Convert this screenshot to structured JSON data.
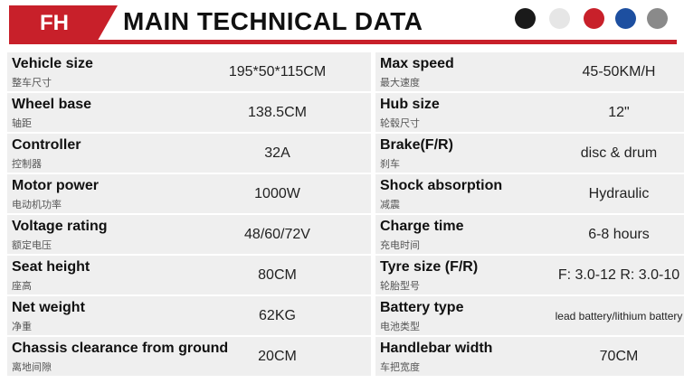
{
  "header": {
    "badge": "FH",
    "title": "MAIN TECHNICAL DATA"
  },
  "table": {
    "rows": [
      [
        {
          "label": "Vehicle size",
          "sublabel": "整车尺寸",
          "value": "195*50*115CM"
        },
        {
          "label": "Max speed",
          "sublabel": "最大速度",
          "value": "45-50KM/H"
        }
      ],
      [
        {
          "label": "Wheel base",
          "sublabel": "轴距",
          "value": "138.5CM"
        },
        {
          "label": "Hub size",
          "sublabel": "轮毂尺寸",
          "value": "12\""
        }
      ],
      [
        {
          "label": "Controller",
          "sublabel": "控制器",
          "value": "32A"
        },
        {
          "label": "Brake(F/R)",
          "sublabel": "刹车",
          "value": "disc & drum"
        }
      ],
      [
        {
          "label": "Motor power",
          "sublabel": "电动机功率",
          "value": "1000W"
        },
        {
          "label": "Shock absorption",
          "sublabel": "减震",
          "value": "Hydraulic"
        }
      ],
      [
        {
          "label": "Voltage rating",
          "sublabel": "额定电压",
          "value": "48/60/72V"
        },
        {
          "label": "Charge time",
          "sublabel": "充电时间",
          "value": "6-8 hours"
        }
      ],
      [
        {
          "label": "Seat height",
          "sublabel": "座高",
          "value": "80CM"
        },
        {
          "label": "Tyre size (F/R)",
          "sublabel": "轮胎型号",
          "value": "F: 3.0-12 R: 3.0-10"
        }
      ],
      [
        {
          "label": "Net weight",
          "sublabel": "净重",
          "value": "62KG"
        },
        {
          "label": "Battery type",
          "sublabel": "电池类型",
          "value": "lead battery/lithium battery"
        }
      ],
      [
        {
          "label": "Chassis clearance from ground",
          "sublabel": "离地间隙",
          "value": "20CM"
        },
        {
          "label": "Handlebar width",
          "sublabel": "车把宽度",
          "value": "70CM"
        }
      ]
    ]
  }
}
